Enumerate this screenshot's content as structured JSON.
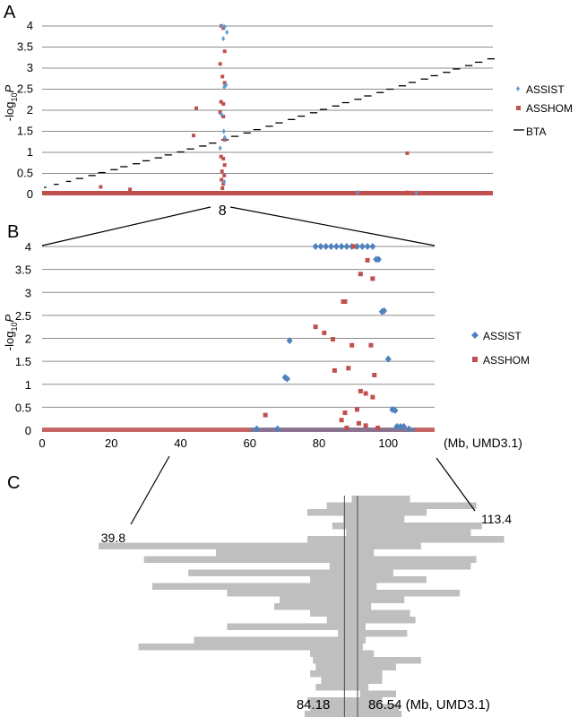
{
  "panels": {
    "a": {
      "label": "A"
    },
    "b": {
      "label": "B"
    },
    "c": {
      "label": "C"
    }
  },
  "ylabel": {
    "prefix": "-log",
    "sub": "10",
    "var": "P"
  },
  "colors": {
    "assist": "#5b9bd5",
    "asshom": "#c0504d",
    "assist_b": "#4f81bd",
    "bta": "#000000",
    "segment": "#bfbfbf"
  },
  "chart_data": [
    {
      "id": "A",
      "type": "scatter",
      "title": "",
      "ylim": [
        0,
        4
      ],
      "yticks": [
        "0",
        "0.5",
        "1",
        "1.5",
        "2",
        "2.5",
        "3",
        "3.5",
        "4"
      ],
      "x_tick_label": "8",
      "legend": {
        "placement": "right",
        "entries": [
          "ASSIST",
          "ASSHOM",
          "BTA"
        ]
      },
      "series": [
        {
          "name": "ASSIST",
          "points": [
            [
              0.4,
              4.0
            ],
            [
              0.405,
              3.98
            ],
            [
              0.41,
              3.85
            ],
            [
              0.402,
              3.7
            ],
            [
              0.408,
              2.6
            ],
            [
              0.404,
              2.55
            ],
            [
              0.398,
              1.9
            ],
            [
              0.403,
              1.5
            ],
            [
              0.395,
              1.1
            ],
            [
              0.405,
              1.35
            ],
            [
              0.404,
              0.3
            ],
            [
              0.7,
              0.05
            ],
            [
              0.83,
              0.04
            ]
          ]
        },
        {
          "name": "ASSHOM",
          "points": [
            [
              0.398,
              4.0
            ],
            [
              0.402,
              3.95
            ],
            [
              0.405,
              3.4
            ],
            [
              0.395,
              3.1
            ],
            [
              0.4,
              2.8
            ],
            [
              0.405,
              2.65
            ],
            [
              0.397,
              2.2
            ],
            [
              0.402,
              2.15
            ],
            [
              0.395,
              1.95
            ],
            [
              0.402,
              1.85
            ],
            [
              0.342,
              2.05
            ],
            [
              0.336,
              1.4
            ],
            [
              0.405,
              1.3
            ],
            [
              0.397,
              0.9
            ],
            [
              0.402,
              0.85
            ],
            [
              0.405,
              0.7
            ],
            [
              0.399,
              0.55
            ],
            [
              0.404,
              0.45
            ],
            [
              0.398,
              0.35
            ],
            [
              0.402,
              0.25
            ],
            [
              0.4,
              0.15
            ],
            [
              0.13,
              0.18
            ],
            [
              0.195,
              0.12
            ],
            [
              0.81,
              0.98
            ],
            [
              0.81,
              0.05
            ]
          ]
        },
        {
          "name": "BTA",
          "segments": [
            [
              0.14,
              0.15,
              0.17
            ],
            [
              0.18,
              0.2,
              0.24
            ],
            [
              0.23,
              0.25,
              0.31
            ],
            [
              0.27,
              0.3,
              0.38
            ],
            [
              0.32,
              0.35,
              0.45
            ],
            [
              0.36,
              0.39,
              0.52
            ],
            [
              0.41,
              0.44,
              0.59
            ],
            [
              0.45,
              0.48,
              0.66
            ],
            [
              0.5,
              0.53,
              0.73
            ],
            [
              0.54,
              0.57,
              0.8
            ],
            [
              0.59,
              0.62,
              0.87
            ],
            [
              0.63,
              0.66,
              0.94
            ],
            [
              0.68,
              0.71,
              1.01
            ],
            [
              0.72,
              0.75,
              1.08
            ],
            [
              0.77,
              0.8,
              1.15
            ],
            [
              0.81,
              0.84,
              1.22
            ],
            [
              0.86,
              0.89,
              1.3
            ],
            [
              0.9,
              0.93,
              1.38
            ],
            [
              0.95,
              0.98,
              1.46
            ],
            [
              0.99,
              1.02,
              1.54
            ],
            [
              1.04,
              1.07,
              1.62
            ],
            [
              1.08,
              1.11,
              1.7
            ],
            [
              1.13,
              1.16,
              1.78
            ],
            [
              1.17,
              1.2,
              1.86
            ],
            [
              1.22,
              1.25,
              1.94
            ],
            [
              1.26,
              1.29,
              2.02
            ],
            [
              1.31,
              1.34,
              2.1
            ],
            [
              1.35,
              1.38,
              2.18
            ],
            [
              1.4,
              1.43,
              2.26
            ],
            [
              1.44,
              1.47,
              2.34
            ],
            [
              1.49,
              1.52,
              2.42
            ],
            [
              1.53,
              1.56,
              2.5
            ],
            [
              1.58,
              1.61,
              2.58
            ],
            [
              1.62,
              1.65,
              2.66
            ],
            [
              1.67,
              1.7,
              2.74
            ],
            [
              1.71,
              1.74,
              2.82
            ],
            [
              1.76,
              1.79,
              2.9
            ],
            [
              1.8,
              1.83,
              2.98
            ],
            [
              1.85,
              1.88,
              3.06
            ],
            [
              1.89,
              1.92,
              3.14
            ],
            [
              1.94,
              1.97,
              3.22
            ]
          ]
        }
      ]
    },
    {
      "id": "B",
      "type": "scatter",
      "title": "",
      "xlabel": "(Mb, UMD3.1)",
      "xlim": [
        0,
        113.4
      ],
      "xticks": [
        "0",
        "20",
        "40",
        "60",
        "80",
        "100"
      ],
      "xtick_values": [
        0,
        20,
        40,
        60,
        80,
        100
      ],
      "ylim": [
        0,
        4
      ],
      "yticks": [
        "0",
        "0.5",
        "1",
        "1.5",
        "2",
        "2.5",
        "3",
        "3.5",
        "4"
      ],
      "legend": {
        "placement": "right",
        "entries": [
          "ASSIST",
          "ASSHOM"
        ]
      },
      "series": [
        {
          "name": "ASSIST",
          "points": [
            [
              79,
              4.0
            ],
            [
              80.5,
              4.0
            ],
            [
              82,
              4.0
            ],
            [
              83.5,
              4.0
            ],
            [
              85,
              4.0
            ],
            [
              86.5,
              4.0
            ],
            [
              88,
              4.0
            ],
            [
              89.5,
              4.0
            ],
            [
              91,
              4.0
            ],
            [
              92.5,
              4.0
            ],
            [
              94,
              4.0
            ],
            [
              95.5,
              4.0
            ],
            [
              96.5,
              3.72
            ],
            [
              97.2,
              3.72
            ],
            [
              98.2,
              2.58
            ],
            [
              98.8,
              2.6
            ],
            [
              71.5,
              1.95
            ],
            [
              70.2,
              1.15
            ],
            [
              70.8,
              1.12
            ],
            [
              100,
              1.55
            ],
            [
              101.2,
              0.45
            ],
            [
              102,
              0.43
            ],
            [
              102.5,
              0.08
            ],
            [
              103.5,
              0.08
            ],
            [
              104.5,
              0.08
            ],
            [
              62,
              0.03
            ],
            [
              68,
              0.03
            ],
            [
              106,
              0.03
            ]
          ]
        },
        {
          "name": "ASSHOM",
          "points": [
            [
              90,
              4.0
            ],
            [
              94,
              3.7
            ],
            [
              92,
              3.4
            ],
            [
              95.5,
              3.3
            ],
            [
              87,
              2.8
            ],
            [
              87.5,
              2.8
            ],
            [
              79,
              2.25
            ],
            [
              81.5,
              2.12
            ],
            [
              84,
              1.98
            ],
            [
              89.5,
              1.85
            ],
            [
              95,
              1.85
            ],
            [
              84.5,
              1.3
            ],
            [
              88.5,
              1.35
            ],
            [
              96,
              1.2
            ],
            [
              92,
              0.85
            ],
            [
              93.5,
              0.8
            ],
            [
              95.5,
              0.72
            ],
            [
              64.5,
              0.33
            ],
            [
              87.5,
              0.38
            ],
            [
              91,
              0.45
            ],
            [
              86.5,
              0.22
            ],
            [
              91.5,
              0.15
            ],
            [
              93.5,
              0.1
            ],
            [
              88,
              0.05
            ],
            [
              97,
              0.05
            ]
          ]
        }
      ]
    },
    {
      "id": "C",
      "type": "interval",
      "title": "",
      "xlim": [
        39.8,
        113.4
      ],
      "range_start_label": "39.8",
      "range_end_label": "113.4",
      "core_start": 84.18,
      "core_end": 86.54,
      "core_start_label": "84.18",
      "core_end_label": "86.54 (Mb, UMD3.1)",
      "segments": [
        [
          85.5,
          96
        ],
        [
          81,
          108
        ],
        [
          77.5,
          99
        ],
        [
          84,
          95
        ],
        [
          82,
          109
        ],
        [
          84.5,
          107
        ],
        [
          77.5,
          113
        ],
        [
          39.8,
          98
        ],
        [
          61,
          89.5
        ],
        [
          48,
          108
        ],
        [
          81.5,
          107
        ],
        [
          56,
          93
        ],
        [
          78,
          99
        ],
        [
          49.5,
          90
        ],
        [
          63,
          105
        ],
        [
          72.5,
          95
        ],
        [
          71.5,
          89
        ],
        [
          78,
          96
        ],
        [
          81,
          97
        ],
        [
          63,
          88
        ],
        [
          83,
          95.5
        ],
        [
          57,
          88
        ],
        [
          47,
          87.5
        ],
        [
          78,
          89.5
        ],
        [
          78.5,
          98
        ],
        [
          79,
          93.5
        ],
        [
          78,
          91
        ],
        [
          80,
          91
        ],
        [
          79,
          88.5
        ],
        [
          87,
          93.5
        ],
        [
          77.5,
          91
        ],
        [
          78,
          94
        ],
        [
          77,
          94.5
        ],
        [
          77.5,
          93
        ]
      ]
    }
  ]
}
